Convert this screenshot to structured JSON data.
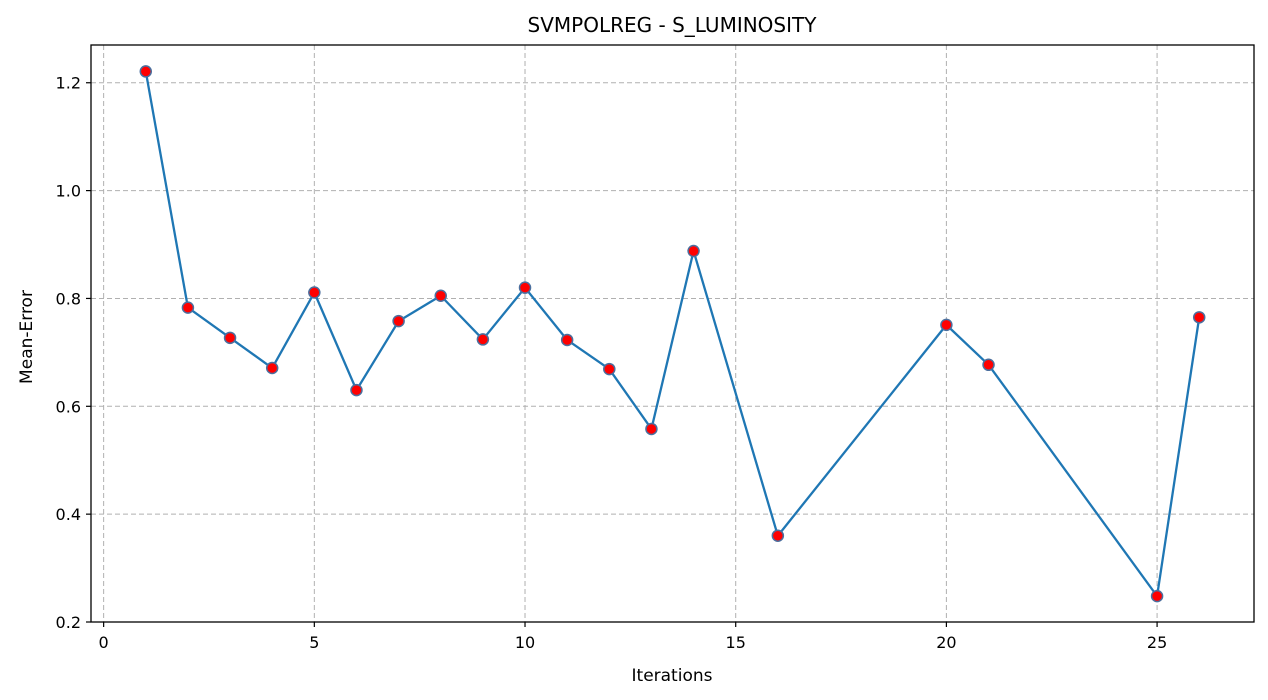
{
  "chart_data": {
    "type": "line",
    "title": "SVMPOLREG - S_LUMINOSITY",
    "xlabel": "Iterations",
    "ylabel": "Mean-Error",
    "x": [
      1,
      2,
      3,
      4,
      5,
      6,
      7,
      8,
      9,
      10,
      11,
      12,
      13,
      14,
      16,
      20,
      21,
      25,
      26
    ],
    "series": [
      {
        "values": [
          1.221,
          0.783,
          0.727,
          0.671,
          0.811,
          0.63,
          0.758,
          0.805,
          0.724,
          0.82,
          0.723,
          0.669,
          0.558,
          0.888,
          0.36,
          0.751,
          0.677,
          0.248,
          0.765
        ]
      }
    ],
    "xlim": [
      -0.3,
      27.3
    ],
    "ylim": [
      0.2,
      1.27
    ],
    "xticks": [
      0,
      5,
      10,
      15,
      20,
      25
    ],
    "yticks": [
      0.2,
      0.4,
      0.6,
      0.8,
      1.0,
      1.2
    ],
    "ytick_labels": [
      "0.2",
      "0.4",
      "0.6",
      "0.8",
      "1.0",
      "1.2"
    ],
    "grid": true,
    "colors": {
      "line": "#1f77b4",
      "marker_fill": "#ff0000",
      "marker_edge": "#4b6f9e"
    }
  }
}
